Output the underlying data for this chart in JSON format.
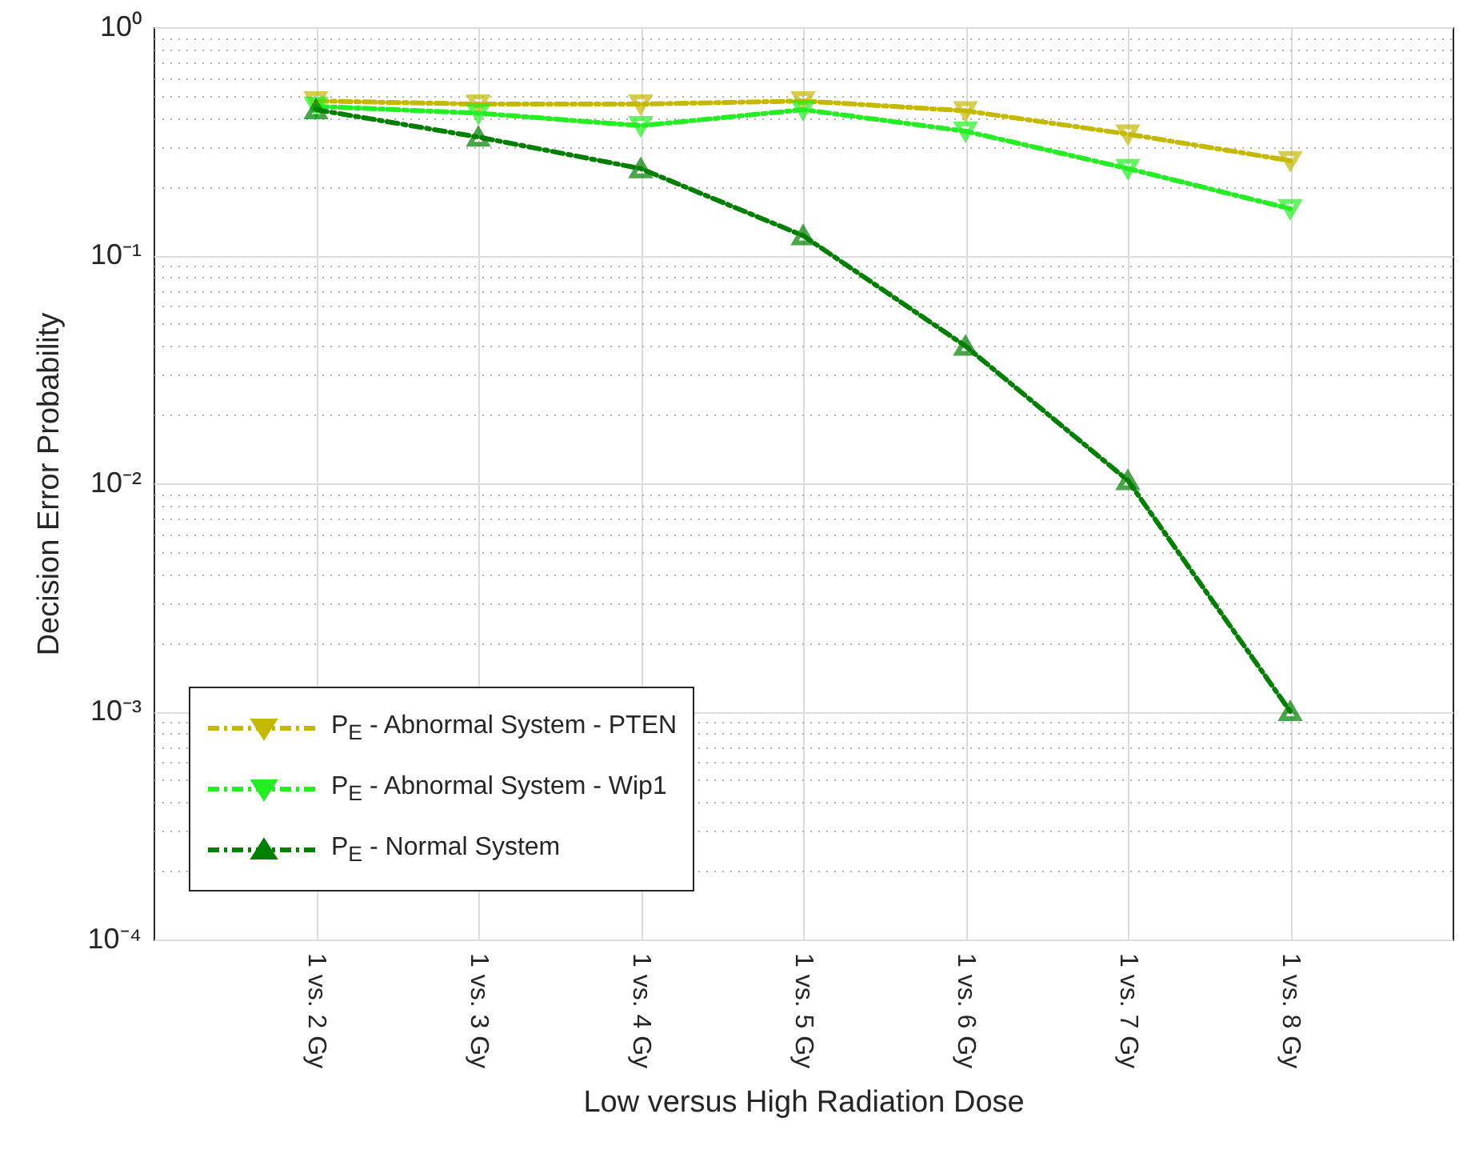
{
  "chart_data": {
    "type": "line",
    "xlabel": "Low versus High Radiation Dose",
    "ylabel": "Decision Error Probability",
    "categories": [
      "1 vs. 2 Gy",
      "1 vs. 3 Gy",
      "1 vs. 4 Gy",
      "1 vs. 5 Gy",
      "1 vs. 6 Gy",
      "1 vs. 7 Gy",
      "1 vs. 8 Gy"
    ],
    "series": [
      {
        "name": "P$_{E}$ - Abnormal System - PTEN",
        "color": "#c4b800",
        "marker": "triangle-down",
        "values": [
          0.475,
          0.46,
          0.46,
          0.475,
          0.43,
          0.34,
          0.26
        ]
      },
      {
        "name": "P$_{E}$ - Abnormal System - Wip1",
        "color": "#22ee22",
        "marker": "triangle-down",
        "values": [
          0.45,
          0.42,
          0.37,
          0.435,
          0.35,
          0.24,
          0.16
        ]
      },
      {
        "name": "P$_{E}$ - Normal System",
        "color": "#007f00",
        "marker": "triangle-up",
        "values": [
          0.435,
          0.33,
          0.24,
          0.122,
          0.04,
          0.0103,
          0.001
        ]
      }
    ],
    "log": true,
    "ylim": [
      0.0001,
      1
    ],
    "yticks": [
      {
        "value": 0.0001,
        "label": "10⁻⁴"
      },
      {
        "value": 0.001,
        "label": "10⁻³"
      },
      {
        "value": 0.01,
        "label": "10⁻²"
      },
      {
        "value": 0.1,
        "label": "10⁻¹"
      },
      {
        "value": 1,
        "label": "10⁰"
      }
    ],
    "grid": true,
    "legend": "bottom left",
    "line_style": "dashed"
  }
}
